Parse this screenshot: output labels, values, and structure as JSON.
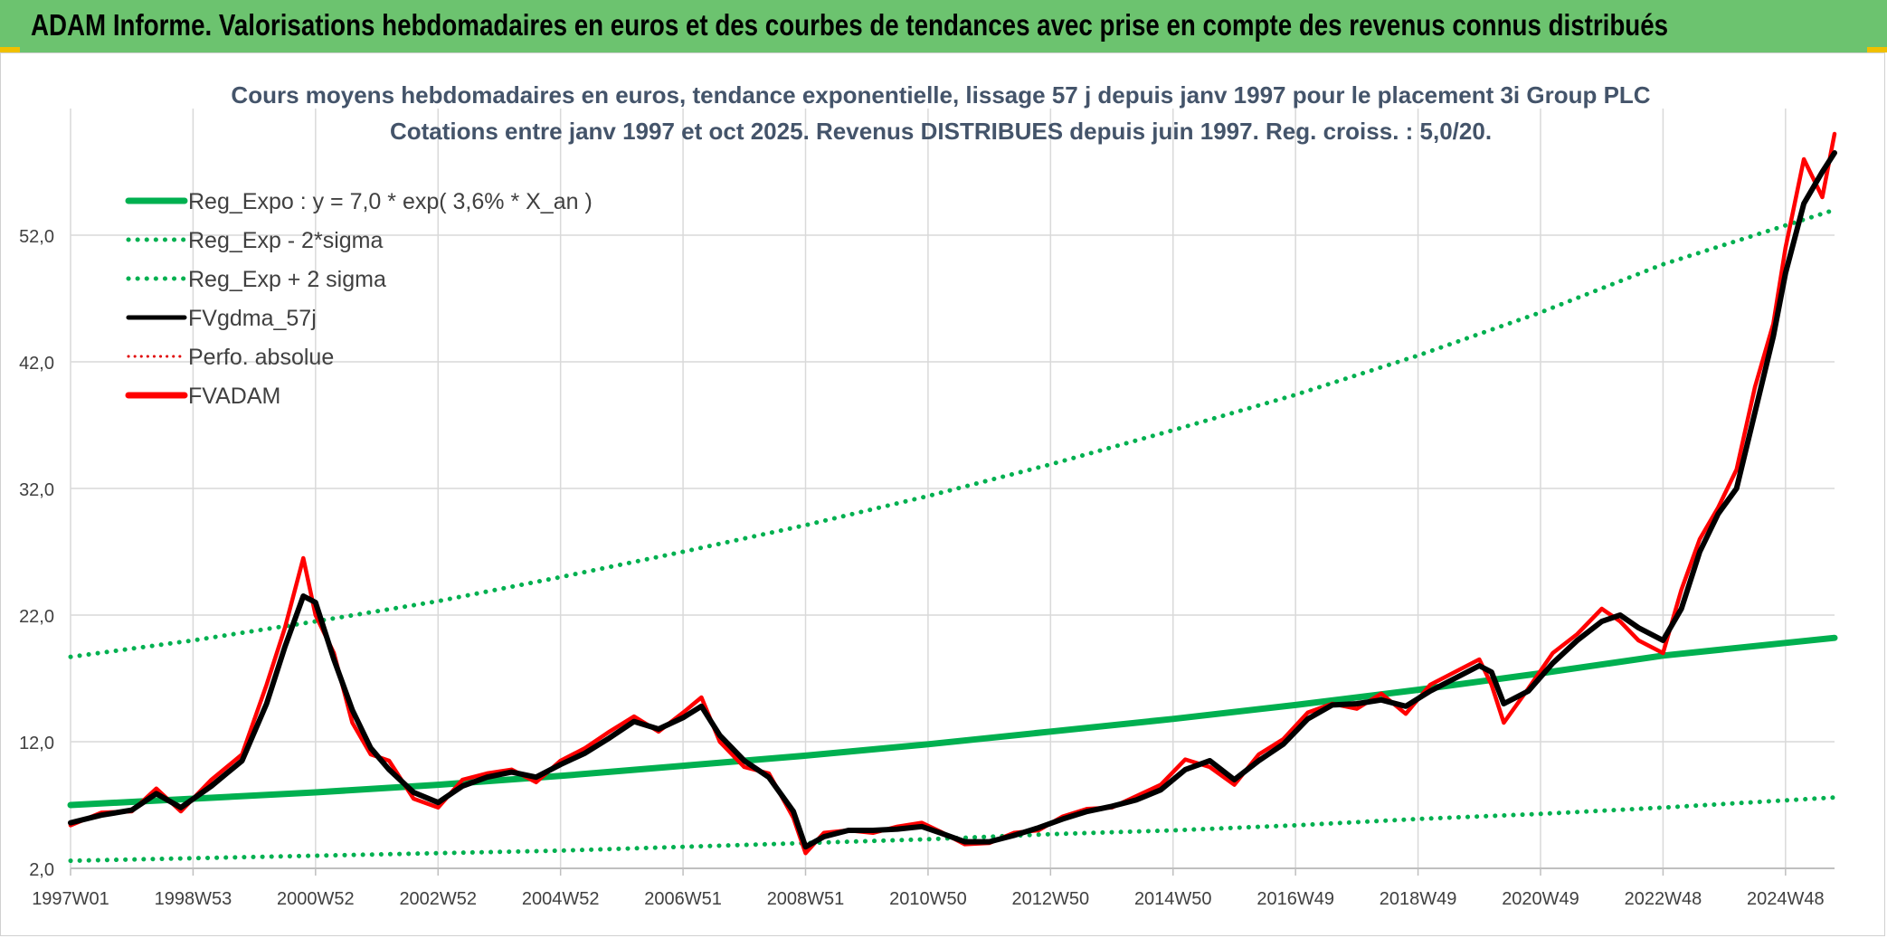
{
  "header": {
    "title": "ADAM Informe. Valorisations hebdomadaires en euros et des courbes de tendances avec prise en compte des revenus connus distribués"
  },
  "chart_data": {
    "type": "line",
    "title": "Cours moyens hebdomadaires en euros, tendance exponentielle, lissage 57 j depuis janv 1997 pour le placement 3i Group PLC",
    "subtitle": "Cotations entre janv 1997 et oct 2025. Revenus DISTRIBUES depuis juin 1997. Reg. croiss. : 5,0/20.",
    "xlabel": "",
    "ylabel": "",
    "x_range": [
      1997.0,
      2025.8
    ],
    "ylim": [
      2.0,
      62.0
    ],
    "y_ticks": [
      "2,0",
      "12,0",
      "22,0",
      "32,0",
      "42,0",
      "52,0"
    ],
    "x_ticks": [
      {
        "label": "1997W01",
        "t": 1997.0
      },
      {
        "label": "1998W53",
        "t": 1999.0
      },
      {
        "label": "2000W52",
        "t": 2001.0
      },
      {
        "label": "2002W52",
        "t": 2003.0
      },
      {
        "label": "2004W52",
        "t": 2005.0
      },
      {
        "label": "2006W51",
        "t": 2007.0
      },
      {
        "label": "2008W51",
        "t": 2009.0
      },
      {
        "label": "2010W50",
        "t": 2011.0
      },
      {
        "label": "2012W50",
        "t": 2013.0
      },
      {
        "label": "2014W50",
        "t": 2015.0
      },
      {
        "label": "2016W49",
        "t": 2017.0
      },
      {
        "label": "2018W49",
        "t": 2019.0
      },
      {
        "label": "2020W49",
        "t": 2021.0
      },
      {
        "label": "2022W48",
        "t": 2023.0
      },
      {
        "label": "2024W48",
        "t": 2025.0
      }
    ],
    "grid": true,
    "legend_position": "top-left",
    "legend": [
      {
        "label": "Reg_Expo : y = 7,0 * exp( 3,6% *  X_an )",
        "color": "#00b050",
        "style": "solid-thick"
      },
      {
        "label": "Reg_Exp - 2*sigma",
        "color": "#00b050",
        "style": "dotted"
      },
      {
        "label": "Reg_Exp + 2 sigma",
        "color": "#00b050",
        "style": "dotted"
      },
      {
        "label": "FVgdma_57j",
        "color": "#000000",
        "style": "solid"
      },
      {
        "label": "Perfo. absolue",
        "color": "#e00000",
        "style": "dotted"
      },
      {
        "label": "FVADAM",
        "color": "#ff0000",
        "style": "solid-thick"
      }
    ],
    "series": [
      {
        "name": "Reg_Expo : y = 7,0 * exp( 3,6% *  X_an )",
        "color": "#00b050",
        "x": [
          1997,
          1999,
          2001,
          2003,
          2005,
          2007,
          2009,
          2011,
          2013,
          2015,
          2017,
          2019,
          2021,
          2023,
          2025.8
        ],
        "values": [
          7.0,
          7.5,
          8.0,
          8.6,
          9.3,
          10.1,
          10.9,
          11.8,
          12.8,
          13.8,
          14.9,
          16.1,
          17.4,
          18.8,
          20.2
        ]
      },
      {
        "name": "Reg_Exp - 2*sigma",
        "color": "#00b050",
        "x": [
          1997,
          1999,
          2001,
          2003,
          2005,
          2007,
          2009,
          2011,
          2013,
          2015,
          2017,
          2019,
          2021,
          2023,
          2025.8
        ],
        "values": [
          2.6,
          2.8,
          3.0,
          3.2,
          3.4,
          3.7,
          4.0,
          4.3,
          4.7,
          5.0,
          5.4,
          5.9,
          6.3,
          6.8,
          7.6
        ]
      },
      {
        "name": "Reg_Exp + 2 sigma",
        "color": "#00b050",
        "x": [
          1997,
          1999,
          2001,
          2003,
          2005,
          2007,
          2009,
          2011,
          2013,
          2015,
          2017,
          2019,
          2021,
          2023,
          2025.8
        ],
        "values": [
          18.7,
          20.0,
          21.5,
          23.1,
          25.0,
          27.0,
          29.1,
          31.4,
          33.9,
          36.6,
          39.4,
          42.5,
          45.9,
          49.7,
          54.0
        ]
      },
      {
        "name": "FVgdma_57j",
        "color": "#000000",
        "x": [
          1997.0,
          1997.5,
          1998.0,
          1998.4,
          1998.8,
          1999.3,
          1999.8,
          2000.2,
          2000.5,
          2000.8,
          2001.0,
          2001.3,
          2001.6,
          2001.9,
          2002.2,
          2002.6,
          2003.0,
          2003.4,
          2003.8,
          2004.2,
          2004.6,
          2005.0,
          2005.4,
          2005.8,
          2006.2,
          2006.6,
          2007.0,
          2007.3,
          2007.6,
          2008.0,
          2008.4,
          2008.8,
          2009.0,
          2009.3,
          2009.7,
          2010.1,
          2010.5,
          2010.9,
          2011.2,
          2011.6,
          2012.0,
          2012.4,
          2012.8,
          2013.2,
          2013.6,
          2014.0,
          2014.4,
          2014.8,
          2015.2,
          2015.6,
          2016.0,
          2016.4,
          2016.8,
          2017.2,
          2017.6,
          2018.0,
          2018.4,
          2018.8,
          2019.2,
          2019.6,
          2020.0,
          2020.2,
          2020.4,
          2020.8,
          2021.2,
          2021.6,
          2022.0,
          2022.3,
          2022.6,
          2023.0,
          2023.3,
          2023.6,
          2023.9,
          2024.2,
          2024.5,
          2024.8,
          2025.0,
          2025.3,
          2025.6,
          2025.8
        ],
        "values": [
          5.6,
          6.2,
          6.6,
          7.9,
          6.8,
          8.5,
          10.5,
          15.0,
          19.5,
          23.5,
          23.0,
          18.5,
          14.5,
          11.5,
          9.8,
          8.0,
          7.2,
          8.5,
          9.2,
          9.6,
          9.2,
          10.2,
          11.1,
          12.3,
          13.6,
          13.0,
          13.9,
          14.8,
          12.5,
          10.5,
          9.2,
          6.5,
          3.7,
          4.5,
          5.0,
          5.0,
          5.1,
          5.3,
          4.8,
          4.1,
          4.1,
          4.6,
          5.2,
          5.9,
          6.5,
          6.9,
          7.4,
          8.2,
          9.8,
          10.5,
          9.0,
          10.5,
          11.8,
          13.8,
          14.9,
          15.0,
          15.3,
          14.8,
          16.0,
          17.0,
          18.0,
          17.5,
          15.0,
          16.0,
          18.2,
          20.0,
          21.5,
          22.0,
          21.0,
          20.0,
          22.5,
          27.0,
          30.0,
          32.0,
          38.0,
          44.0,
          49.0,
          54.5,
          57.0,
          58.5
        ]
      },
      {
        "name": "FVADAM",
        "color": "#ff0000",
        "x": [
          1997.0,
          1997.5,
          1998.0,
          1998.4,
          1998.8,
          1999.3,
          1999.8,
          2000.2,
          2000.5,
          2000.8,
          2001.0,
          2001.3,
          2001.6,
          2001.9,
          2002.2,
          2002.6,
          2003.0,
          2003.4,
          2003.8,
          2004.2,
          2004.6,
          2005.0,
          2005.4,
          2005.8,
          2006.2,
          2006.6,
          2007.0,
          2007.3,
          2007.6,
          2008.0,
          2008.4,
          2008.8,
          2009.0,
          2009.3,
          2009.7,
          2010.1,
          2010.5,
          2010.9,
          2011.2,
          2011.6,
          2012.0,
          2012.4,
          2012.8,
          2013.2,
          2013.6,
          2014.0,
          2014.4,
          2014.8,
          2015.2,
          2015.6,
          2016.0,
          2016.4,
          2016.8,
          2017.2,
          2017.6,
          2018.0,
          2018.4,
          2018.8,
          2019.2,
          2019.6,
          2020.0,
          2020.2,
          2020.4,
          2020.8,
          2021.2,
          2021.6,
          2022.0,
          2022.3,
          2022.6,
          2023.0,
          2023.3,
          2023.6,
          2023.9,
          2024.2,
          2024.5,
          2024.8,
          2025.0,
          2025.3,
          2025.6,
          2025.8
        ],
        "values": [
          5.4,
          6.4,
          6.5,
          8.3,
          6.5,
          9.0,
          11.0,
          16.5,
          21.0,
          26.5,
          22.0,
          19.0,
          13.5,
          11.0,
          10.5,
          7.5,
          6.8,
          9.0,
          9.5,
          9.8,
          8.8,
          10.5,
          11.5,
          12.8,
          14.0,
          12.8,
          14.3,
          15.5,
          12.0,
          10.0,
          9.5,
          6.0,
          3.2,
          4.8,
          5.0,
          4.8,
          5.3,
          5.6,
          4.9,
          3.9,
          4.0,
          4.8,
          5.0,
          6.1,
          6.7,
          6.8,
          7.7,
          8.6,
          10.6,
          10.0,
          8.6,
          11.0,
          12.2,
          14.3,
          15.0,
          14.6,
          15.8,
          14.2,
          16.5,
          17.5,
          18.5,
          16.5,
          13.5,
          16.2,
          19.0,
          20.5,
          22.5,
          21.5,
          20.0,
          19.0,
          24.0,
          28.0,
          30.5,
          33.5,
          40.0,
          45.0,
          51.0,
          58.0,
          55.0,
          60.0
        ]
      }
    ]
  }
}
